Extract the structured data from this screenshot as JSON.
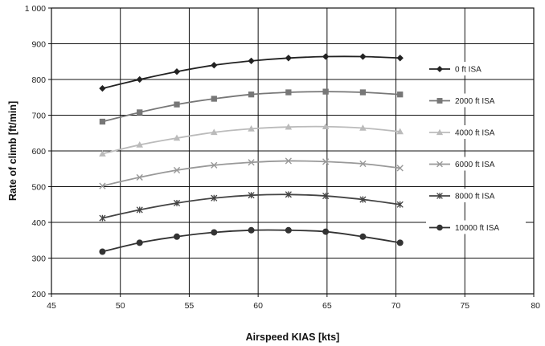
{
  "chart_data": {
    "type": "line",
    "title": "",
    "xlabel": "Airspeed KIAS [kts]",
    "ylabel": "Rate of climb [ft/min]",
    "xlim": [
      45,
      80
    ],
    "ylim": [
      200,
      1000
    ],
    "xticks": [
      45,
      50,
      55,
      60,
      65,
      70,
      75,
      80
    ],
    "xtick_labels": [
      "45",
      "50",
      "55",
      "60",
      "65",
      "70",
      "75",
      "80"
    ],
    "yticks": [
      200,
      300,
      400,
      500,
      600,
      700,
      800,
      900,
      1000
    ],
    "ytick_labels": [
      "200",
      "300",
      "400",
      "500",
      "600",
      "700",
      "800",
      "900",
      "1 000"
    ],
    "grid": "horizontal and vertical major gridlines",
    "legend_position": "right",
    "x": [
      48.7,
      51.4,
      54.1,
      56.8,
      59.5,
      62.2,
      64.9,
      67.6,
      70.3
    ],
    "series": [
      {
        "name": "0 ft ISA",
        "marker": "diamond",
        "color": "#222222",
        "values": [
          775,
          800,
          822,
          840,
          852,
          860,
          864,
          864,
          860
        ]
      },
      {
        "name": "2000 ft ISA",
        "marker": "square",
        "color": "#777777",
        "values": [
          682,
          708,
          730,
          746,
          758,
          764,
          766,
          764,
          758
        ]
      },
      {
        "name": "4000 ft ISA",
        "marker": "triangle",
        "color": "#bbbbbb",
        "values": [
          592,
          617,
          636,
          652,
          662,
          667,
          668,
          664,
          654
        ]
      },
      {
        "name": "6000 ft ISA",
        "marker": "x",
        "color": "#999999",
        "values": [
          502,
          526,
          546,
          560,
          568,
          572,
          570,
          564,
          552
        ]
      },
      {
        "name": "8000 ft ISA",
        "marker": "star",
        "color": "#444444",
        "values": [
          412,
          435,
          454,
          468,
          476,
          478,
          474,
          464,
          450
        ]
      },
      {
        "name": "10000 ft ISA",
        "marker": "circle",
        "color": "#333333",
        "values": [
          318,
          343,
          360,
          372,
          378,
          378,
          374,
          360,
          343
        ]
      }
    ]
  }
}
